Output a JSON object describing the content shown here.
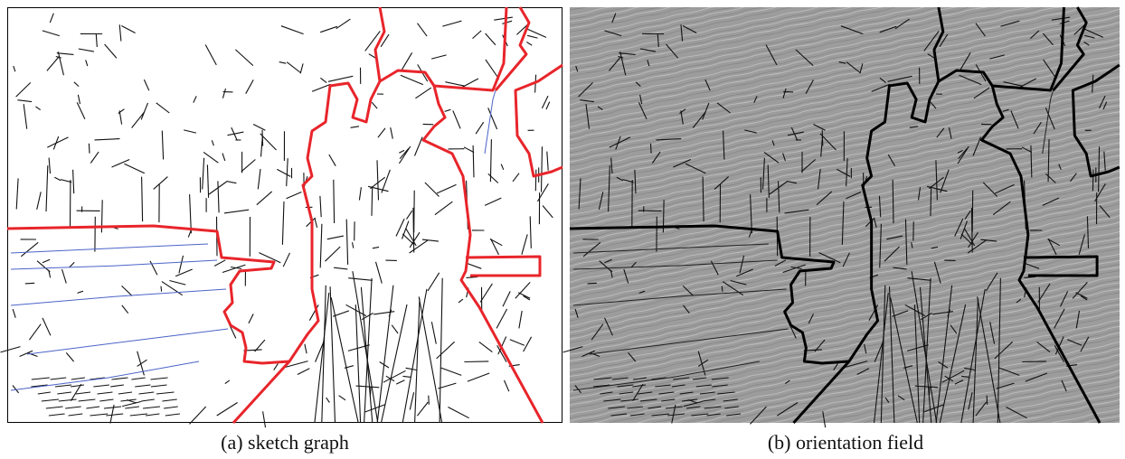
{
  "figure": {
    "panels": [
      {
        "caption": "(a) sketch graph"
      },
      {
        "caption": "(b) orientation field"
      }
    ]
  }
}
